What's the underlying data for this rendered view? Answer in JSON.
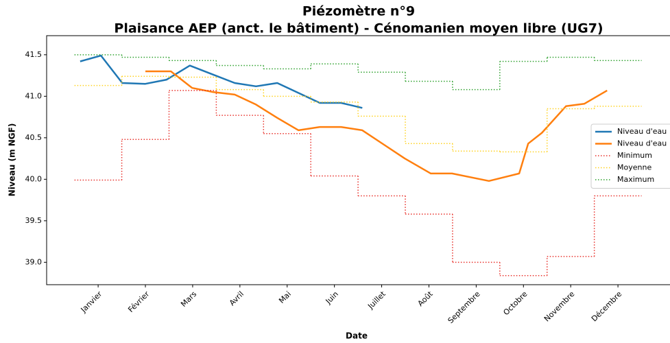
{
  "chart_data": {
    "type": "line",
    "title": "Piézomètre n°9",
    "subtitle": "Plaisance AEP (anct. le bâtiment) - Cénomanien moyen libre (UG7)",
    "x_label": "Date",
    "y_label": "Niveau (m NGF)",
    "xlim": [
      -1.09,
      12.29
    ],
    "ylim": [
      38.73,
      41.73
    ],
    "xticks": [
      {
        "value": 0,
        "label": "Janvier"
      },
      {
        "value": 1,
        "label": "Février"
      },
      {
        "value": 2,
        "label": "Mars"
      },
      {
        "value": 3,
        "label": "Avril"
      },
      {
        "value": 4,
        "label": "Mai"
      },
      {
        "value": 5,
        "label": "Juin"
      },
      {
        "value": 6,
        "label": "Juillet"
      },
      {
        "value": 7,
        "label": "Août"
      },
      {
        "value": 8,
        "label": "Septembre"
      },
      {
        "value": 9,
        "label": "Octobre"
      },
      {
        "value": 10,
        "label": "Novembre"
      },
      {
        "value": 11,
        "label": "Décembre"
      }
    ],
    "yticks": [
      {
        "value": 39,
        "label": "39.0"
      },
      39.5,
      {
        "value": 40,
        "label": "40.0"
      },
      40.5,
      {
        "value": 41,
        "label": "41.0"
      },
      41.5
    ],
    "legend": "right",
    "series": [
      {
        "name": "Niveau d'eau",
        "color": "#1f77b4",
        "style": "solid",
        "x": [
          -0.38,
          0.06,
          0.51,
          1.0,
          1.45,
          1.94,
          2.44,
          2.89,
          3.34,
          3.79,
          4.24,
          4.69,
          5.14,
          5.59
        ],
        "values": [
          41.42,
          41.49,
          41.16,
          41.15,
          41.2,
          41.37,
          41.26,
          41.16,
          41.12,
          41.16,
          41.04,
          40.92,
          40.92,
          40.86
        ]
      },
      {
        "name": "Niveau d'eau",
        "color": "#ff7f0e",
        "style": "solid",
        "x": [
          1.0,
          1.54,
          1.99,
          2.44,
          2.89,
          3.34,
          3.79,
          4.24,
          4.69,
          5.14,
          5.59,
          6.04,
          6.49,
          7.04,
          7.49,
          8.27,
          8.91,
          9.1,
          9.39,
          9.9,
          10.29,
          10.77
        ],
        "values": [
          41.3,
          41.3,
          41.1,
          41.05,
          41.02,
          40.9,
          40.74,
          40.59,
          40.63,
          40.63,
          40.59,
          40.42,
          40.25,
          40.07,
          40.07,
          39.98,
          40.07,
          40.43,
          40.56,
          40.88,
          40.91,
          41.07
        ]
      },
      {
        "name": "Minimum",
        "color": "#e8302a",
        "style": "steps",
        "x": [
          0,
          1,
          2,
          3,
          4,
          5,
          6,
          7,
          8,
          9,
          10,
          11
        ],
        "values": [
          39.99,
          40.48,
          41.07,
          40.77,
          40.55,
          40.04,
          39.8,
          39.58,
          39.0,
          38.84,
          39.07,
          39.8
        ]
      },
      {
        "name": "Moyenne",
        "color": "#ffd21f",
        "style": "steps",
        "x": [
          0,
          1,
          2,
          3,
          4,
          5,
          6,
          7,
          8,
          9,
          10,
          11
        ],
        "values": [
          41.13,
          41.24,
          41.23,
          41.08,
          41.0,
          40.93,
          40.76,
          40.43,
          40.34,
          40.33,
          40.85,
          40.88
        ]
      },
      {
        "name": "Maximum",
        "color": "#2ca02c",
        "style": "steps",
        "x": [
          0,
          1,
          2,
          3,
          4,
          5,
          6,
          7,
          8,
          9,
          10,
          11
        ],
        "values": [
          41.5,
          41.47,
          41.43,
          41.37,
          41.33,
          41.39,
          41.29,
          41.18,
          41.08,
          41.42,
          41.47,
          41.43
        ]
      }
    ]
  }
}
